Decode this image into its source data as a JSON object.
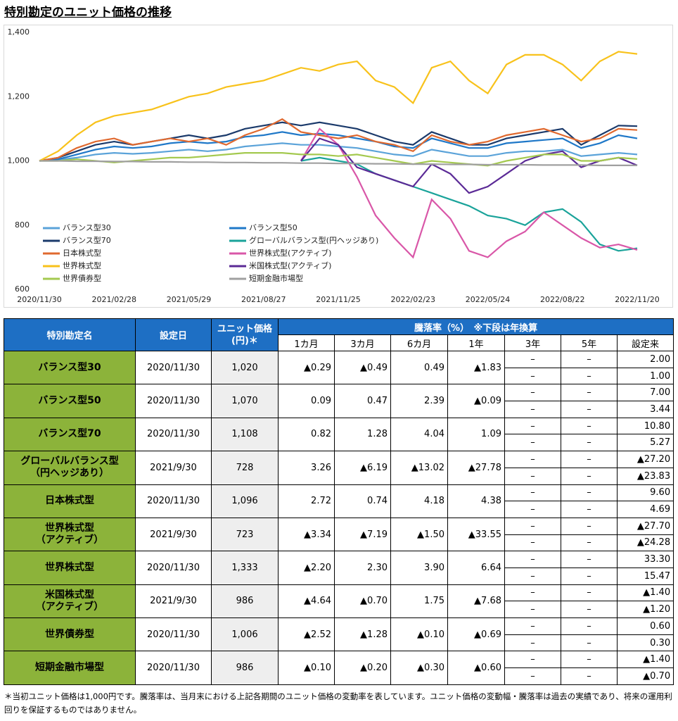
{
  "header": {
    "title": "特別勘定のユニット価格の推移"
  },
  "chart_data": {
    "type": "line",
    "categories": [
      "2020/11/30",
      null,
      null,
      null,
      "2021/02/28",
      null,
      null,
      null,
      "2021/05/29",
      null,
      null,
      null,
      "2021/08/27",
      null,
      null,
      null,
      "2021/11/25",
      null,
      null,
      null,
      "2022/02/23",
      null,
      null,
      null,
      "2022/05/24",
      null,
      null,
      null,
      "2022/08/22",
      null,
      null,
      null,
      "2022/11/20"
    ],
    "ylim": [
      600,
      1400
    ],
    "yticks": [
      600,
      800,
      {
        "value": 1000,
        "label": "1,000"
      },
      {
        "value": 1200,
        "label": "1,200"
      },
      {
        "value": 1400,
        "label": "1,400"
      }
    ],
    "grid": false,
    "series": [
      {
        "name": "バランス型30",
        "color": "#5ba3d9",
        "values": [
          1000,
          1003,
          1010,
          1020,
          1025,
          1022,
          1025,
          1030,
          1035,
          1030,
          1035,
          1045,
          1050,
          1055,
          1050,
          1050,
          1045,
          1040,
          1030,
          1020,
          1015,
          1035,
          1025,
          1015,
          1015,
          1025,
          1030,
          1030,
          1035,
          1015,
          1020,
          1025,
          1020
        ]
      },
      {
        "name": "バランス型50",
        "color": "#1f78c8",
        "values": [
          1000,
          1005,
          1020,
          1035,
          1045,
          1040,
          1045,
          1055,
          1060,
          1055,
          1060,
          1075,
          1080,
          1090,
          1080,
          1085,
          1080,
          1070,
          1060,
          1045,
          1040,
          1070,
          1055,
          1040,
          1040,
          1055,
          1060,
          1065,
          1070,
          1040,
          1055,
          1080,
          1070
        ]
      },
      {
        "name": "バランス型70",
        "color": "#1b3a6b",
        "values": [
          1000,
          1010,
          1030,
          1050,
          1060,
          1050,
          1060,
          1070,
          1080,
          1070,
          1080,
          1100,
          1110,
          1120,
          1110,
          1120,
          1110,
          1100,
          1080,
          1060,
          1050,
          1090,
          1070,
          1050,
          1050,
          1070,
          1080,
          1090,
          1100,
          1050,
          1080,
          1110,
          1108
        ]
      },
      {
        "name": "グローバルバランス型(円ヘッジあり)",
        "color": "#1aa39a",
        "values": [
          null,
          null,
          null,
          null,
          null,
          null,
          null,
          null,
          null,
          null,
          null,
          null,
          null,
          null,
          1000,
          1010,
          1000,
          990,
          960,
          940,
          920,
          900,
          880,
          860,
          830,
          820,
          800,
          840,
          850,
          810,
          740,
          720,
          728
        ]
      },
      {
        "name": "日本株式型",
        "color": "#e0692f",
        "values": [
          1000,
          1010,
          1040,
          1060,
          1070,
          1050,
          1060,
          1070,
          1060,
          1070,
          1050,
          1080,
          1100,
          1130,
          1090,
          1080,
          1070,
          1080,
          1060,
          1050,
          1030,
          1080,
          1060,
          1050,
          1060,
          1080,
          1090,
          1100,
          1080,
          1060,
          1070,
          1100,
          1096
        ]
      },
      {
        "name": "世界株式型(アクティブ)",
        "color": "#d957a8",
        "values": [
          null,
          null,
          null,
          null,
          null,
          null,
          null,
          null,
          null,
          null,
          null,
          null,
          null,
          null,
          1000,
          1100,
          1050,
          950,
          830,
          760,
          700,
          880,
          820,
          720,
          700,
          750,
          780,
          840,
          800,
          760,
          730,
          740,
          723
        ]
      },
      {
        "name": "世界株式型",
        "color": "#f8c21b",
        "values": [
          1000,
          1030,
          1080,
          1120,
          1140,
          1150,
          1160,
          1180,
          1200,
          1210,
          1230,
          1240,
          1250,
          1270,
          1290,
          1280,
          1300,
          1310,
          1250,
          1230,
          1180,
          1290,
          1310,
          1250,
          1210,
          1300,
          1330,
          1330,
          1300,
          1250,
          1310,
          1340,
          1333
        ]
      },
      {
        "name": "米国株式型(アクティブ)",
        "color": "#5b2a96",
        "values": [
          null,
          null,
          null,
          null,
          null,
          null,
          null,
          null,
          null,
          null,
          null,
          null,
          null,
          null,
          1000,
          1070,
          1050,
          980,
          960,
          940,
          920,
          990,
          960,
          900,
          920,
          960,
          1000,
          1020,
          1030,
          980,
          1000,
          1010,
          986
        ]
      },
      {
        "name": "世界債券型",
        "color": "#a4c94f",
        "values": [
          1000,
          1000,
          1005,
          1000,
          995,
          1000,
          1005,
          1010,
          1010,
          1015,
          1020,
          1025,
          1025,
          1025,
          1020,
          1020,
          1015,
          1020,
          1010,
          1000,
          990,
          1000,
          995,
          990,
          985,
          1000,
          1010,
          1020,
          1020,
          1000,
          1000,
          1010,
          1006
        ]
      },
      {
        "name": "短期金融市場型",
        "color": "#a0a0a0",
        "values": [
          1000,
          1000,
          999,
          999,
          998,
          998,
          997,
          997,
          996,
          996,
          995,
          995,
          994,
          994,
          993,
          993,
          992,
          992,
          991,
          991,
          990,
          990,
          989,
          989,
          988,
          988,
          988,
          987,
          987,
          987,
          986,
          986,
          986
        ]
      }
    ]
  },
  "table": {
    "headers": [
      "特別勘定名",
      "設定日",
      "ユニット価格(円)＊",
      "騰落率（%）　※下段は年換算"
    ],
    "subheaders": [
      "1カ月",
      "3カ月",
      "6カ月",
      "1年",
      "3年",
      "5年",
      "設定来"
    ],
    "rows": [
      {
        "name": [
          "バランス型30"
        ],
        "date": "2020/11/30",
        "price": "1,020",
        "returns": [
          "▲0.29",
          "▲0.49",
          "0.49",
          "▲1.83"
        ],
        "three_year": [
          "–",
          "–"
        ],
        "five_year": [
          "–",
          "–"
        ],
        "since": [
          "2.00",
          "1.00"
        ]
      },
      {
        "name": [
          "バランス型50"
        ],
        "date": "2020/11/30",
        "price": "1,070",
        "returns": [
          "0.09",
          "0.47",
          "2.39",
          "▲0.09"
        ],
        "three_year": [
          "–",
          "–"
        ],
        "five_year": [
          "–",
          "–"
        ],
        "since": [
          "7.00",
          "3.44"
        ]
      },
      {
        "name": [
          "バランス型70"
        ],
        "date": "2020/11/30",
        "price": "1,108",
        "returns": [
          "0.82",
          "1.28",
          "4.04",
          "1.09"
        ],
        "three_year": [
          "–",
          "–"
        ],
        "five_year": [
          "–",
          "–"
        ],
        "since": [
          "10.80",
          "5.27"
        ]
      },
      {
        "name": [
          "グローバルバランス型",
          "（円ヘッジあり）"
        ],
        "date": "2021/9/30",
        "price": "728",
        "returns": [
          "3.26",
          "▲6.19",
          "▲13.02",
          "▲27.78"
        ],
        "three_year": [
          "–",
          "–"
        ],
        "five_year": [
          "–",
          "–"
        ],
        "since": [
          "▲27.20",
          "▲23.83"
        ]
      },
      {
        "name": [
          "日本株式型"
        ],
        "date": "2020/11/30",
        "price": "1,096",
        "returns": [
          "2.72",
          "0.74",
          "4.18",
          "4.38"
        ],
        "three_year": [
          "–",
          "–"
        ],
        "five_year": [
          "–",
          "–"
        ],
        "since": [
          "9.60",
          "4.69"
        ]
      },
      {
        "name": [
          "世界株式型",
          "（アクティブ）"
        ],
        "date": "2021/9/30",
        "price": "723",
        "returns": [
          "▲3.34",
          "▲7.19",
          "▲1.50",
          "▲33.55"
        ],
        "three_year": [
          "–",
          "–"
        ],
        "five_year": [
          "–",
          "–"
        ],
        "since": [
          "▲27.70",
          "▲24.28"
        ]
      },
      {
        "name": [
          "世界株式型"
        ],
        "date": "2020/11/30",
        "price": "1,333",
        "returns": [
          "▲2.20",
          "2.30",
          "3.90",
          "6.64"
        ],
        "three_year": [
          "–",
          "–"
        ],
        "five_year": [
          "–",
          "–"
        ],
        "since": [
          "33.30",
          "15.47"
        ]
      },
      {
        "name": [
          "米国株式型",
          "（アクティブ）"
        ],
        "date": "2021/9/30",
        "price": "986",
        "returns": [
          "▲4.64",
          "▲0.70",
          "1.75",
          "▲7.68"
        ],
        "three_year": [
          "–",
          "–"
        ],
        "five_year": [
          "–",
          "–"
        ],
        "since": [
          "▲1.40",
          "▲1.20"
        ]
      },
      {
        "name": [
          "世界債券型"
        ],
        "date": "2020/11/30",
        "price": "1,006",
        "returns": [
          "▲2.52",
          "▲1.28",
          "▲0.10",
          "▲0.69"
        ],
        "three_year": [
          "–",
          "–"
        ],
        "five_year": [
          "–",
          "–"
        ],
        "since": [
          "0.60",
          "0.30"
        ]
      },
      {
        "name": [
          "短期金融市場型"
        ],
        "date": "2020/11/30",
        "price": "986",
        "returns": [
          "▲0.10",
          "▲0.20",
          "▲0.30",
          "▲0.60"
        ],
        "three_year": [
          "–",
          "–"
        ],
        "five_year": [
          "–",
          "–"
        ],
        "since": [
          "▲1.40",
          "▲0.70"
        ]
      }
    ]
  },
  "footnote": "＊当初ユニット価格は1,000円です。騰落率は、当月末における上記各期間のユニット価格の変動率を表しています。ユニット価格の変動幅・騰落率は過去の実績であり、将来の運用利回りを保証するものではありません。"
}
